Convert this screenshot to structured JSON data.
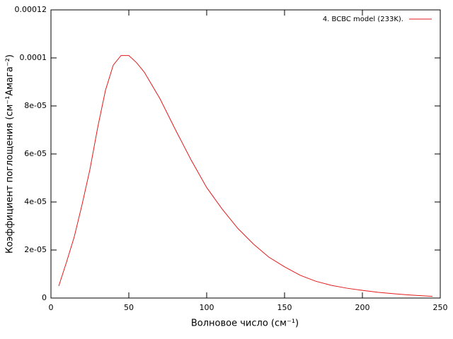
{
  "chart_data": {
    "type": "line",
    "x_label": "Волновое число (см⁻¹)",
    "y_label": "Коэффициент поглощения (см⁻¹Амага⁻²)",
    "x": [
      5,
      10,
      15,
      20,
      25,
      30,
      35,
      40,
      45,
      50,
      55,
      60,
      70,
      80,
      90,
      100,
      110,
      120,
      130,
      140,
      150,
      160,
      170,
      180,
      190,
      200,
      210,
      220,
      230,
      245
    ],
    "series": [
      {
        "name": "4. BCBC model (233K).",
        "color": "#e41a1c",
        "values": [
          5e-06,
          1.5e-05,
          2.56e-05,
          3.9e-05,
          5.35e-05,
          7.1e-05,
          8.65e-05,
          9.7e-05,
          0.000101,
          0.000101,
          9.8e-05,
          9.4e-05,
          8.3e-05,
          7e-05,
          5.75e-05,
          4.6e-05,
          3.7e-05,
          2.9e-05,
          2.25e-05,
          1.7e-05,
          1.3e-05,
          9.5e-06,
          7e-06,
          5.3e-06,
          4.1e-06,
          3.2e-06,
          2.4e-06,
          1.8e-06,
          1.3e-06,
          7e-07
        ]
      }
    ],
    "xlim": [
      0,
      250
    ],
    "xticks": [
      0,
      50,
      100,
      150,
      200,
      250
    ],
    "ylim": [
      0,
      0.00012
    ],
    "yticks": [
      0,
      {
        "value": 2e-05,
        "label": "2e-05"
      },
      {
        "value": 4e-05,
        "label": "4e-05"
      },
      {
        "value": 6e-05,
        "label": "6e-05"
      },
      {
        "value": 8e-05,
        "label": "8e-05"
      },
      0.0001,
      0.00012
    ],
    "legend": "top-right",
    "grid": false
  }
}
